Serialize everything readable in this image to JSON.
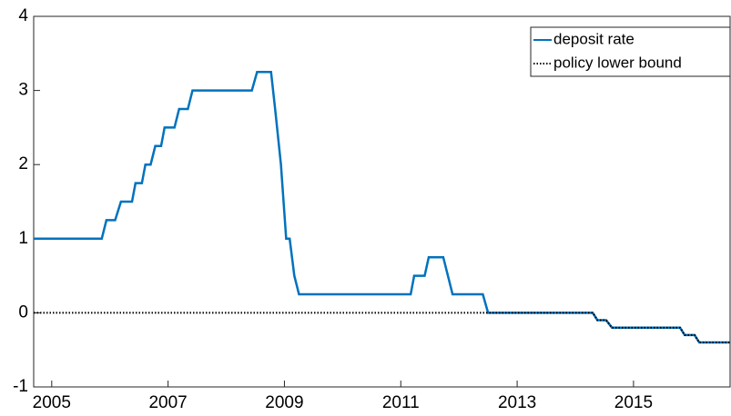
{
  "chart_data": {
    "type": "line",
    "x": [
      2004.69,
      2005.86,
      2005.94,
      2006.09,
      2006.19,
      2006.38,
      2006.44,
      2006.55,
      2006.61,
      2006.7,
      2006.78,
      2006.88,
      2006.94,
      2007.11,
      2007.19,
      2007.34,
      2007.42,
      2008.44,
      2008.53,
      2008.77,
      2008.84,
      2008.94,
      2009.03,
      2009.09,
      2009.17,
      2009.25,
      2011.17,
      2011.23,
      2011.41,
      2011.48,
      2011.73,
      2011.89,
      2012.41,
      2012.5,
      2014.3,
      2014.38,
      2014.53,
      2014.63,
      2015.8,
      2015.88,
      2016.05,
      2016.13,
      2016.66
    ],
    "series": [
      {
        "name": "deposit rate",
        "color": "#0072bd",
        "style": "solid",
        "values": [
          1,
          1,
          1.25,
          1.25,
          1.5,
          1.5,
          1.75,
          1.75,
          2,
          2,
          2.25,
          2.25,
          2.5,
          2.5,
          2.75,
          2.75,
          3,
          3,
          3.25,
          3.25,
          2.75,
          2,
          1,
          1,
          0.5,
          0.25,
          0.25,
          0.5,
          0.5,
          0.75,
          0.75,
          0.25,
          0.25,
          0,
          0,
          -0.1,
          -0.1,
          -0.2,
          -0.2,
          -0.3,
          -0.3,
          -0.4,
          -0.4
        ]
      },
      {
        "name": "policy lower bound",
        "color": "#000000",
        "style": "dotted",
        "values": [
          0,
          0,
          0,
          0,
          0,
          0,
          0,
          0,
          0,
          0,
          0,
          0,
          0,
          0,
          0,
          0,
          0,
          0,
          0,
          0,
          0,
          0,
          0,
          0,
          0,
          0,
          0,
          0,
          0,
          0,
          0,
          0,
          0,
          0,
          0,
          -0.1,
          -0.1,
          -0.2,
          -0.2,
          -0.3,
          -0.3,
          -0.4,
          -0.4
        ]
      }
    ],
    "xlim": [
      2004.69,
      2016.66
    ],
    "ylim": [
      -1,
      4
    ],
    "xticks": [
      2005,
      2007,
      2009,
      2011,
      2013,
      2015
    ],
    "yticks": [
      -1,
      0,
      1,
      2,
      3,
      4
    ],
    "legend": "upper-right"
  }
}
